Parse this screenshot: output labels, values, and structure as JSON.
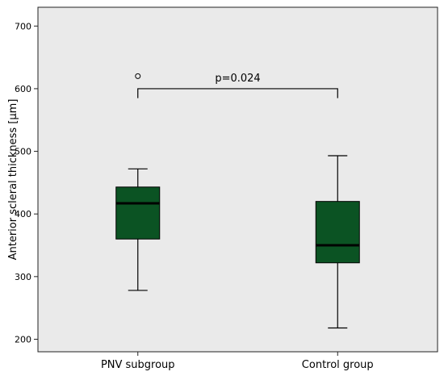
{
  "chart_data": {
    "type": "box",
    "ylabel": "Anterior scleral thickness [μm]",
    "xlabel": "",
    "ylim": [
      180,
      730
    ],
    "yticks": [
      200,
      300,
      400,
      500,
      600,
      700
    ],
    "grid": false,
    "box_color": "#0b5323",
    "plot_background": "#eaeaea",
    "categories": [
      "PNV subgroup",
      "Control group"
    ],
    "boxes": [
      {
        "category": "PNV subgroup",
        "min": 278,
        "q1": 360,
        "median": 417,
        "q3": 443,
        "max": 472,
        "outliers": [
          620
        ]
      },
      {
        "category": "Control group",
        "min": 218,
        "q1": 322,
        "median": 350,
        "q3": 420,
        "max": 493,
        "outliers": []
      }
    ],
    "annotations": [
      {
        "text": "p=0.024",
        "between": [
          "PNV subgroup",
          "Control group"
        ],
        "bracket_y": 600,
        "bracket_drop": 585
      }
    ]
  }
}
